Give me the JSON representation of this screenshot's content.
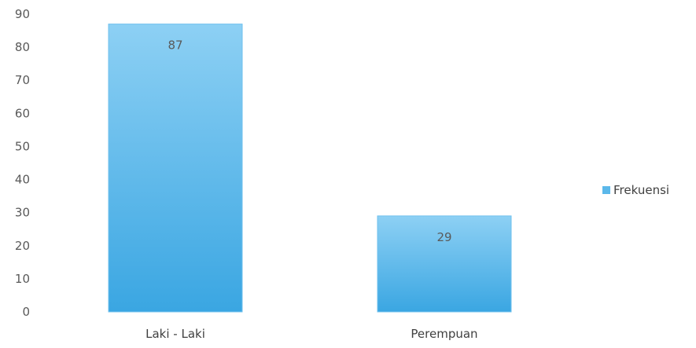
{
  "chart_data": {
    "type": "bar",
    "categories": [
      "Laki - Laki",
      "Perempuan"
    ],
    "series": [
      {
        "name": "Frekuensi",
        "values": [
          87,
          29
        ],
        "color": "#5bb8ea"
      }
    ],
    "ylim": [
      0,
      90
    ],
    "yticks": [
      0,
      10,
      20,
      30,
      40,
      50,
      60,
      70,
      80,
      90
    ],
    "data_labels": [
      "87",
      "29"
    ],
    "grid": false,
    "legend": {
      "position": "right",
      "entries": [
        "Frekuensi"
      ]
    },
    "colors": {
      "bar_light": "#8dd0f4",
      "bar_dark": "#3aa6e2",
      "bar_edge": "#6fc0ee"
    }
  }
}
